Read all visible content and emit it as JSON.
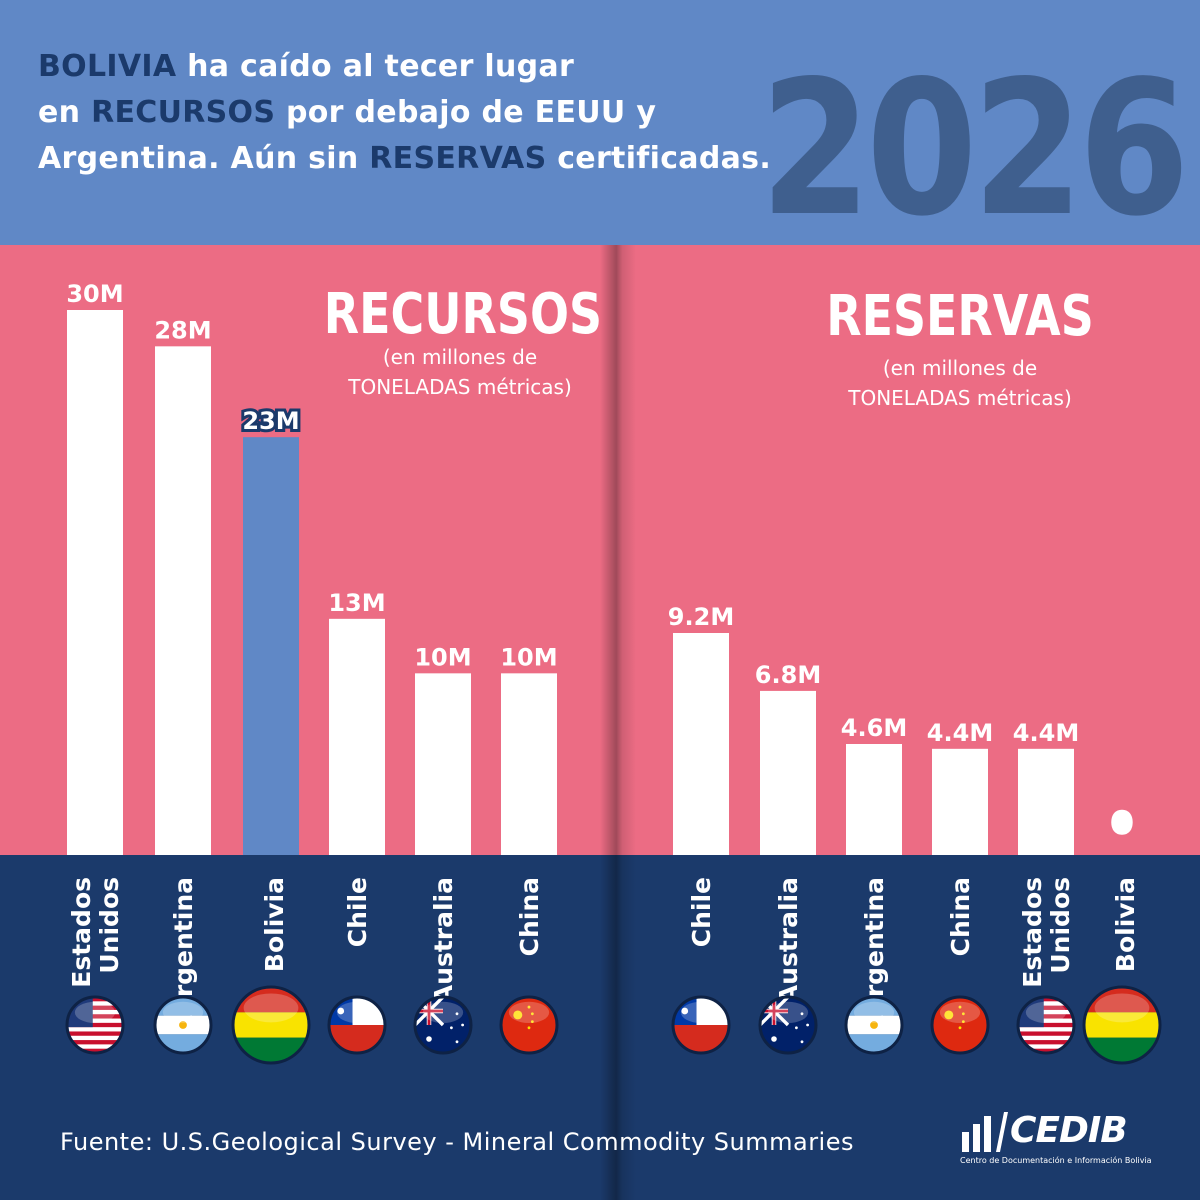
{
  "header": {
    "headline_parts": [
      {
        "text": "BOLIVIA",
        "highlight": true
      },
      {
        "text": " ha caído al tecer lugar",
        "highlight": false
      },
      {
        "text": "en ",
        "highlight": false,
        "break_before": true
      },
      {
        "text": "RECURSOS",
        "highlight": true
      },
      {
        "text": " por debajo de EEUU y",
        "highlight": false
      },
      {
        "text": "Argentina. Aún sin ",
        "highlight": false,
        "break_before": true
      },
      {
        "text": "RESERVAS",
        "highlight": true
      },
      {
        "text": " certificadas.",
        "highlight": false
      }
    ],
    "year": "2026"
  },
  "colors": {
    "header_bg": "#6088c6",
    "chart_bg": "#ec6c84",
    "lower_bg": "#1b3a6b",
    "bar_default": "#ffffff",
    "bar_highlight": "#6088c6",
    "highlight_text": "#1b3a6b",
    "zero_label": "#9b1b30"
  },
  "chart_data": [
    {
      "type": "bar",
      "title": "RECURSOS",
      "subtitle_lines": [
        "(en millones de",
        "TONELADAS métricas)"
      ],
      "categories": [
        "Estados Unidos",
        "Argentina",
        "Bolivia",
        "Chile",
        "Australia",
        "China"
      ],
      "values": [
        30,
        28,
        23,
        13,
        10,
        10
      ],
      "labels": [
        "30M",
        "28M",
        "23M",
        "13M",
        "10M",
        "10M"
      ],
      "category_lines": [
        [
          "Estados",
          "Unidos"
        ],
        [
          "Argentina"
        ],
        [
          "Bolivia"
        ],
        [
          "Chile"
        ],
        [
          "Australia"
        ],
        [
          "China"
        ]
      ],
      "flags": [
        "flag-usa",
        "flag-argentina",
        "flag-bolivia",
        "flag-chile",
        "flag-australia",
        "flag-china"
      ],
      "highlight": "Bolivia",
      "ylim": [
        0,
        30
      ],
      "unit": "millones de toneladas métricas"
    },
    {
      "type": "bar",
      "title": "RESERVAS",
      "subtitle_lines": [
        "(en millones de",
        "TONELADAS métricas)"
      ],
      "categories": [
        "Chile",
        "Australia",
        "Argentina",
        "China",
        "Estados Unidos",
        "Bolivia"
      ],
      "values": [
        9.2,
        6.8,
        4.6,
        4.4,
        4.4,
        0
      ],
      "labels": [
        "9.2M",
        "6.8M",
        "4.6M",
        "4.4M",
        "4.4M",
        "0"
      ],
      "category_lines": [
        [
          "Chile"
        ],
        [
          "Australia"
        ],
        [
          "Argentina"
        ],
        [
          "China"
        ],
        [
          "Estados",
          "Unidos"
        ],
        [
          "Bolivia"
        ]
      ],
      "flags": [
        "flag-chile",
        "flag-australia",
        "flag-argentina",
        "flag-china",
        "flag-usa",
        "flag-bolivia"
      ],
      "highlight": "Bolivia",
      "ylim": [
        0,
        9.2
      ],
      "unit": "millones de toneladas métricas"
    }
  ],
  "footer": {
    "source": "Fuente: U.S.Geological Survey - Mineral Commodity Summaries",
    "logo_text": "CEDIB",
    "logo_tagline": "Centro de Documentación e Información Bolivia"
  }
}
